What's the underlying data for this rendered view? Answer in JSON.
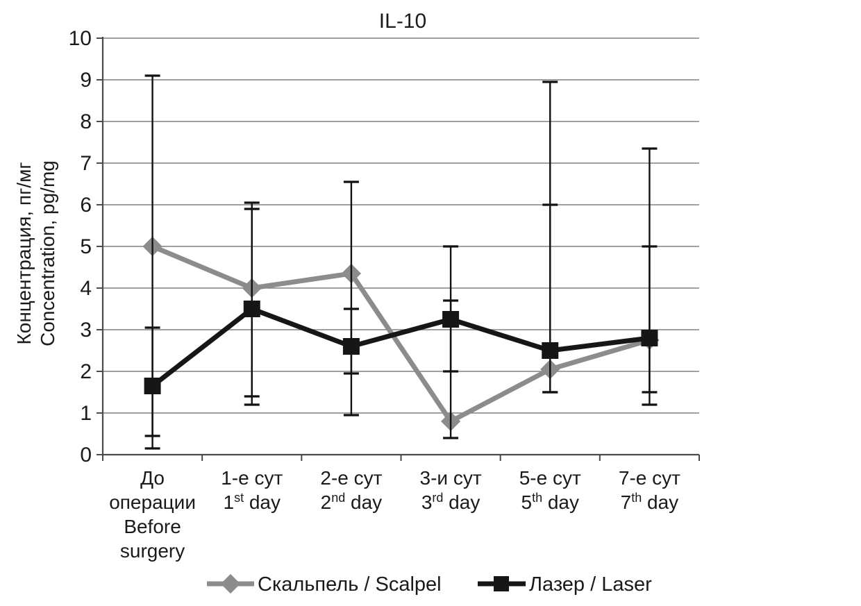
{
  "title": "IL-10",
  "colors": {
    "scalpel": "#8c8c8c",
    "laser": "#161616",
    "gridline": "#808080",
    "axis": "#4a4a4a",
    "error_bar": "#111111",
    "text": "#1a1a1a"
  },
  "y_axis": {
    "label_ru": "Концентрация, пг/мг",
    "label_en": "Concentration, pg/mg",
    "tick_labels": [
      "0",
      "1",
      "2",
      "3",
      "4",
      "5",
      "6",
      "7",
      "8",
      "9",
      "10"
    ]
  },
  "x_axis": {
    "categories": [
      {
        "lines": [
          {
            "t": "До"
          },
          {
            "t": "операции"
          },
          {
            "t": "Before"
          },
          {
            "t": "surgery"
          }
        ]
      },
      {
        "lines": [
          {
            "t": "1-е сут"
          },
          {
            "t": "1",
            "sup": "st",
            "t2": " day"
          }
        ]
      },
      {
        "lines": [
          {
            "t": "2-е сут"
          },
          {
            "t": "2",
            "sup": "nd",
            "t2": " day"
          }
        ]
      },
      {
        "lines": [
          {
            "t": "3-и сут"
          },
          {
            "t": "3",
            "sup": "rd",
            "t2": " day"
          }
        ]
      },
      {
        "lines": [
          {
            "t": "5-е сут"
          },
          {
            "t": "5",
            "sup": "th",
            "t2": " day"
          }
        ]
      },
      {
        "lines": [
          {
            "t": "7-е сут"
          },
          {
            "t": "7",
            "sup": "th",
            "t2": " day"
          }
        ]
      }
    ]
  },
  "legend": {
    "scalpel_label": "Скальпель / Scalpel",
    "laser_label": "Лазер / Laser"
  },
  "chart_data": {
    "type": "line",
    "title": "IL-10",
    "ylabel": "Концентрация, пг/мг / Concentration, pg/mg",
    "xlabel": "",
    "ylim": [
      0,
      10
    ],
    "grid": true,
    "legend_position": "bottom",
    "error_bars": true,
    "categories": [
      "До операции / Before surgery",
      "1-е сут / 1st day",
      "2-е сут / 2nd day",
      "3-и сут / 3rd day",
      "5-е сут / 5th day",
      "7-е сут / 7th day"
    ],
    "series": [
      {
        "name": "Скальпель / Scalpel",
        "marker": "diamond",
        "color": "#8c8c8c",
        "values": [
          5.0,
          4.0,
          4.35,
          0.8,
          2.05,
          2.75
        ],
        "error_top": [
          9.1,
          6.05,
          6.55,
          5.0,
          8.95,
          7.35
        ],
        "error_bottom": [
          0.45,
          1.2,
          0.95,
          0.4,
          1.5,
          1.2
        ]
      },
      {
        "name": "Лазер / Laser",
        "marker": "square",
        "color": "#161616",
        "values": [
          1.65,
          3.5,
          2.6,
          3.25,
          2.5,
          2.8
        ],
        "error_top": [
          3.05,
          5.9,
          3.5,
          3.7,
          6.0,
          5.0
        ],
        "error_bottom": [
          0.15,
          1.4,
          1.95,
          2.0,
          1.5,
          1.5
        ]
      }
    ]
  }
}
